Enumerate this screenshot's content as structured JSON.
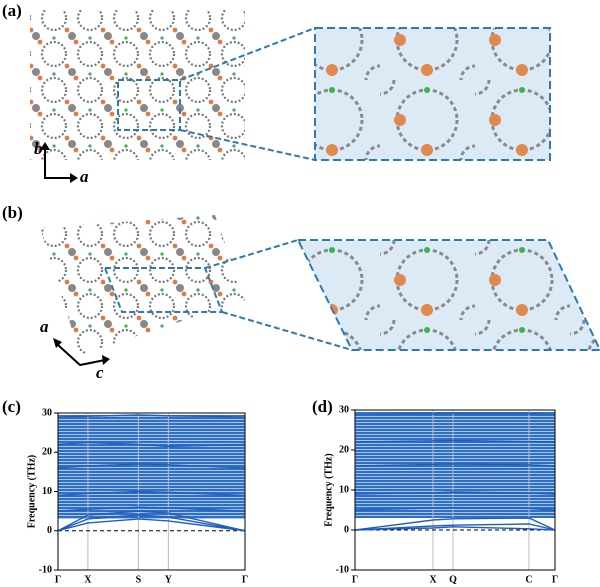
{
  "figure": {
    "labels": [
      "(a)",
      "(b)",
      "(c)",
      "(d)"
    ],
    "axes_a": [
      "b",
      "a"
    ],
    "axes_b": [
      "a",
      "c"
    ]
  },
  "chart_data": [
    {
      "type": "line",
      "ylabel": "Frequency (THz)",
      "ylim": [
        -10,
        30
      ],
      "yticks": [
        30,
        20,
        10,
        0,
        -10
      ],
      "xlim": [
        0,
        1
      ],
      "xticks": [
        {
          "value": 0,
          "label": "Γ"
        },
        {
          "value": 0.16,
          "label": "X"
        },
        {
          "value": 0.43,
          "label": "S"
        },
        {
          "value": 0.59,
          "label": "Y"
        },
        {
          "value": 1,
          "label": "Γ"
        }
      ],
      "x": [
        0,
        0.16,
        0.43,
        0.59,
        1
      ],
      "color": "#1f5fbf",
      "series": [
        {
          "values": [
            0,
            2,
            3,
            2.5,
            0
          ]
        },
        {
          "values": [
            0,
            3,
            4,
            3.5,
            0
          ]
        },
        {
          "values": [
            0,
            4,
            5,
            4.5,
            0
          ]
        },
        {
          "values": [
            5,
            5.5,
            6,
            5.8,
            5
          ]
        },
        {
          "values": [
            9,
            9.5,
            10,
            9.8,
            9
          ]
        },
        {
          "values": [
            16,
            16.5,
            17,
            16.8,
            16
          ]
        },
        {
          "values": [
            22,
            22.5,
            22,
            21.5,
            22
          ]
        },
        {
          "values": [
            29,
            29.2,
            29.5,
            29.3,
            29
          ]
        }
      ]
    },
    {
      "type": "line",
      "ylabel": "Frequency (THz)",
      "ylim": [
        -10,
        30
      ],
      "yticks": [
        30,
        20,
        10,
        0,
        -10
      ],
      "xlim": [
        0,
        1
      ],
      "xticks": [
        {
          "value": 0,
          "label": "Γ"
        },
        {
          "value": 0.39,
          "label": "X"
        },
        {
          "value": 0.49,
          "label": "Q"
        },
        {
          "value": 0.87,
          "label": "C"
        },
        {
          "value": 1,
          "label": "Γ"
        }
      ],
      "x": [
        0,
        0.39,
        0.49,
        0.87,
        1
      ],
      "color": "#1f5fbf",
      "series": [
        {
          "values": [
            0,
            0.5,
            0.8,
            0.3,
            0
          ]
        },
        {
          "values": [
            0,
            1,
            1.2,
            1.5,
            0
          ]
        },
        {
          "values": [
            0,
            2.5,
            2.8,
            3,
            0
          ]
        },
        {
          "values": [
            5,
            5.5,
            5.6,
            5.4,
            5
          ]
        },
        {
          "values": [
            9,
            9.3,
            9.5,
            9.2,
            9
          ]
        },
        {
          "values": [
            16,
            16.4,
            16.5,
            16.3,
            16
          ]
        },
        {
          "values": [
            22,
            22.3,
            22.4,
            22.1,
            22
          ]
        },
        {
          "values": [
            29,
            29.1,
            29.2,
            29.1,
            29
          ]
        }
      ]
    }
  ]
}
